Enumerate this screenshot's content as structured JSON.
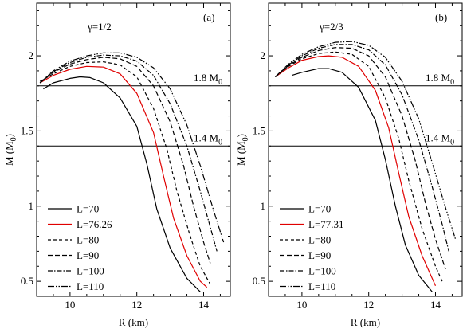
{
  "chart_data": [
    {
      "type": "line",
      "panel_label": "(a)",
      "gamma_label": "γ=1/2",
      "xlabel": "R (km)",
      "ylabel": "M (M",
      "ylabel_sub": "0",
      "ylabel_close": ")",
      "xlim": [
        9.0,
        14.8
      ],
      "ylim": [
        0.4,
        2.35
      ],
      "xticks": [
        10,
        12,
        14
      ],
      "yticks": [
        0.5,
        1,
        1.5,
        2
      ],
      "ytick_labels": [
        "0.5",
        "1",
        "1.5",
        "2"
      ],
      "reference_lines": [
        {
          "y": 1.8,
          "label": "1.8 M",
          "sub": "0"
        },
        {
          "y": 1.4,
          "label": "1.4 M",
          "sub": "0"
        }
      ],
      "series": [
        {
          "name": "L=70",
          "color": "#000000",
          "dash": "solid",
          "points": [
            [
              9.2,
              1.78
            ],
            [
              9.5,
              1.82
            ],
            [
              10.0,
              1.85
            ],
            [
              10.3,
              1.86
            ],
            [
              10.6,
              1.855
            ],
            [
              11.0,
              1.82
            ],
            [
              11.5,
              1.72
            ],
            [
              12.0,
              1.53
            ],
            [
              12.3,
              1.28
            ],
            [
              12.6,
              0.98
            ],
            [
              13.0,
              0.72
            ],
            [
              13.5,
              0.52
            ],
            [
              13.9,
              0.43
            ]
          ]
        },
        {
          "name": "L=76.26",
          "color": "#e00000",
          "dash": "solid",
          "points": [
            [
              9.1,
              1.82
            ],
            [
              9.5,
              1.87
            ],
            [
              10.0,
              1.91
            ],
            [
              10.5,
              1.93
            ],
            [
              11.0,
              1.925
            ],
            [
              11.5,
              1.88
            ],
            [
              12.0,
              1.75
            ],
            [
              12.5,
              1.49
            ],
            [
              12.8,
              1.2
            ],
            [
              13.1,
              0.92
            ],
            [
              13.5,
              0.67
            ],
            [
              13.9,
              0.5
            ],
            [
              14.1,
              0.46
            ]
          ]
        },
        {
          "name": "L=80",
          "color": "#000000",
          "dash": "4,3",
          "points": [
            [
              9.1,
              1.83
            ],
            [
              9.5,
              1.88
            ],
            [
              10.0,
              1.93
            ],
            [
              10.5,
              1.955
            ],
            [
              11.0,
              1.96
            ],
            [
              11.5,
              1.94
            ],
            [
              12.0,
              1.86
            ],
            [
              12.5,
              1.65
            ],
            [
              12.9,
              1.38
            ],
            [
              13.2,
              1.1
            ],
            [
              13.6,
              0.8
            ],
            [
              13.9,
              0.6
            ],
            [
              14.2,
              0.48
            ]
          ]
        },
        {
          "name": "L=90",
          "color": "#000000",
          "dash": "6,3",
          "points": [
            [
              9.1,
              1.82
            ],
            [
              9.5,
              1.89
            ],
            [
              10.0,
              1.945
            ],
            [
              10.5,
              1.975
            ],
            [
              11.0,
              1.99
            ],
            [
              11.5,
              1.98
            ],
            [
              12.0,
              1.93
            ],
            [
              12.5,
              1.8
            ],
            [
              13.0,
              1.56
            ],
            [
              13.4,
              1.27
            ],
            [
              13.7,
              1.0
            ],
            [
              14.0,
              0.76
            ],
            [
              14.2,
              0.62
            ]
          ]
        },
        {
          "name": "L=100",
          "color": "#000000",
          "dash": "6,2,1.5,2",
          "points": [
            [
              9.1,
              1.82
            ],
            [
              9.5,
              1.895
            ],
            [
              10.0,
              1.955
            ],
            [
              10.5,
              1.99
            ],
            [
              11.0,
              2.005
            ],
            [
              11.5,
              2.0
            ],
            [
              12.0,
              1.965
            ],
            [
              12.5,
              1.87
            ],
            [
              13.0,
              1.68
            ],
            [
              13.5,
              1.4
            ],
            [
              13.9,
              1.1
            ],
            [
              14.2,
              0.86
            ],
            [
              14.4,
              0.7
            ]
          ]
        },
        {
          "name": "L=110",
          "color": "#000000",
          "dash": "8,2,1.5,2,1.5,2",
          "points": [
            [
              9.1,
              1.82
            ],
            [
              9.5,
              1.9
            ],
            [
              10.0,
              1.965
            ],
            [
              10.5,
              2.0
            ],
            [
              11.0,
              2.02
            ],
            [
              11.5,
              2.02
            ],
            [
              12.0,
              1.99
            ],
            [
              12.5,
              1.92
            ],
            [
              13.0,
              1.78
            ],
            [
              13.5,
              1.54
            ],
            [
              13.9,
              1.27
            ],
            [
              14.3,
              0.97
            ],
            [
              14.6,
              0.76
            ]
          ]
        }
      ]
    },
    {
      "type": "line",
      "panel_label": "(b)",
      "gamma_label": "γ=2/3",
      "xlabel": "R (km)",
      "ylabel": "M (M",
      "ylabel_sub": "0",
      "ylabel_close": ")",
      "xlim": [
        9.0,
        14.8
      ],
      "ylim": [
        0.4,
        2.35
      ],
      "xticks": [
        10,
        12,
        14
      ],
      "yticks": [
        0.5,
        1,
        1.5,
        2
      ],
      "ytick_labels": [
        "0.5",
        "1",
        "1.5",
        "2"
      ],
      "reference_lines": [
        {
          "y": 1.8,
          "label": "1.8 M",
          "sub": "0"
        },
        {
          "y": 1.4,
          "label": "1.4 M",
          "sub": "0"
        }
      ],
      "series": [
        {
          "name": "L=70",
          "color": "#000000",
          "dash": "solid",
          "points": [
            [
              9.7,
              1.87
            ],
            [
              10.0,
              1.89
            ],
            [
              10.5,
              1.915
            ],
            [
              10.8,
              1.915
            ],
            [
              11.2,
              1.89
            ],
            [
              11.7,
              1.79
            ],
            [
              12.2,
              1.57
            ],
            [
              12.5,
              1.31
            ],
            [
              12.8,
              1.0
            ],
            [
              13.1,
              0.74
            ],
            [
              13.5,
              0.54
            ],
            [
              13.9,
              0.43
            ]
          ]
        },
        {
          "name": "L=77.31",
          "color": "#e00000",
          "dash": "solid",
          "points": [
            [
              9.2,
              1.86
            ],
            [
              9.6,
              1.92
            ],
            [
              10.0,
              1.97
            ],
            [
              10.5,
              1.995
            ],
            [
              10.8,
              2.0
            ],
            [
              11.2,
              1.99
            ],
            [
              11.7,
              1.93
            ],
            [
              12.2,
              1.77
            ],
            [
              12.6,
              1.52
            ],
            [
              12.9,
              1.22
            ],
            [
              13.2,
              0.93
            ],
            [
              13.6,
              0.67
            ],
            [
              14.0,
              0.47
            ]
          ]
        },
        {
          "name": "L=80",
          "color": "#000000",
          "dash": "4,3",
          "points": [
            [
              9.2,
              1.86
            ],
            [
              9.6,
              1.93
            ],
            [
              10.0,
              1.98
            ],
            [
              10.5,
              2.015
            ],
            [
              11.0,
              2.025
            ],
            [
              11.5,
              2.01
            ],
            [
              12.0,
              1.93
            ],
            [
              12.5,
              1.72
            ],
            [
              12.9,
              1.45
            ],
            [
              13.2,
              1.17
            ],
            [
              13.6,
              0.85
            ],
            [
              14.0,
              0.6
            ],
            [
              14.2,
              0.5
            ]
          ]
        },
        {
          "name": "L=90",
          "color": "#000000",
          "dash": "6,3",
          "points": [
            [
              9.2,
              1.86
            ],
            [
              9.6,
              1.935
            ],
            [
              10.0,
              1.99
            ],
            [
              10.5,
              2.035
            ],
            [
              11.0,
              2.055
            ],
            [
              11.5,
              2.05
            ],
            [
              12.0,
              2.0
            ],
            [
              12.5,
              1.86
            ],
            [
              13.0,
              1.6
            ],
            [
              13.4,
              1.3
            ],
            [
              13.7,
              1.02
            ],
            [
              14.0,
              0.78
            ],
            [
              14.3,
              0.58
            ]
          ]
        },
        {
          "name": "L=100",
          "color": "#000000",
          "dash": "6,2,1.5,2",
          "points": [
            [
              9.2,
              1.86
            ],
            [
              9.6,
              1.94
            ],
            [
              10.0,
              2.0
            ],
            [
              10.5,
              2.05
            ],
            [
              11.0,
              2.075
            ],
            [
              11.5,
              2.075
            ],
            [
              12.0,
              2.04
            ],
            [
              12.5,
              1.94
            ],
            [
              13.0,
              1.74
            ],
            [
              13.5,
              1.44
            ],
            [
              13.9,
              1.13
            ],
            [
              14.2,
              0.88
            ],
            [
              14.4,
              0.7
            ]
          ]
        },
        {
          "name": "L=110",
          "color": "#000000",
          "dash": "8,2,1.5,2,1.5,2",
          "points": [
            [
              9.2,
              1.86
            ],
            [
              9.6,
              1.945
            ],
            [
              10.0,
              2.01
            ],
            [
              10.5,
              2.06
            ],
            [
              11.0,
              2.09
            ],
            [
              11.5,
              2.095
            ],
            [
              12.0,
              2.07
            ],
            [
              12.5,
              1.99
            ],
            [
              13.0,
              1.83
            ],
            [
              13.5,
              1.58
            ],
            [
              13.9,
              1.29
            ],
            [
              14.3,
              0.99
            ],
            [
              14.6,
              0.78
            ]
          ]
        }
      ]
    }
  ]
}
